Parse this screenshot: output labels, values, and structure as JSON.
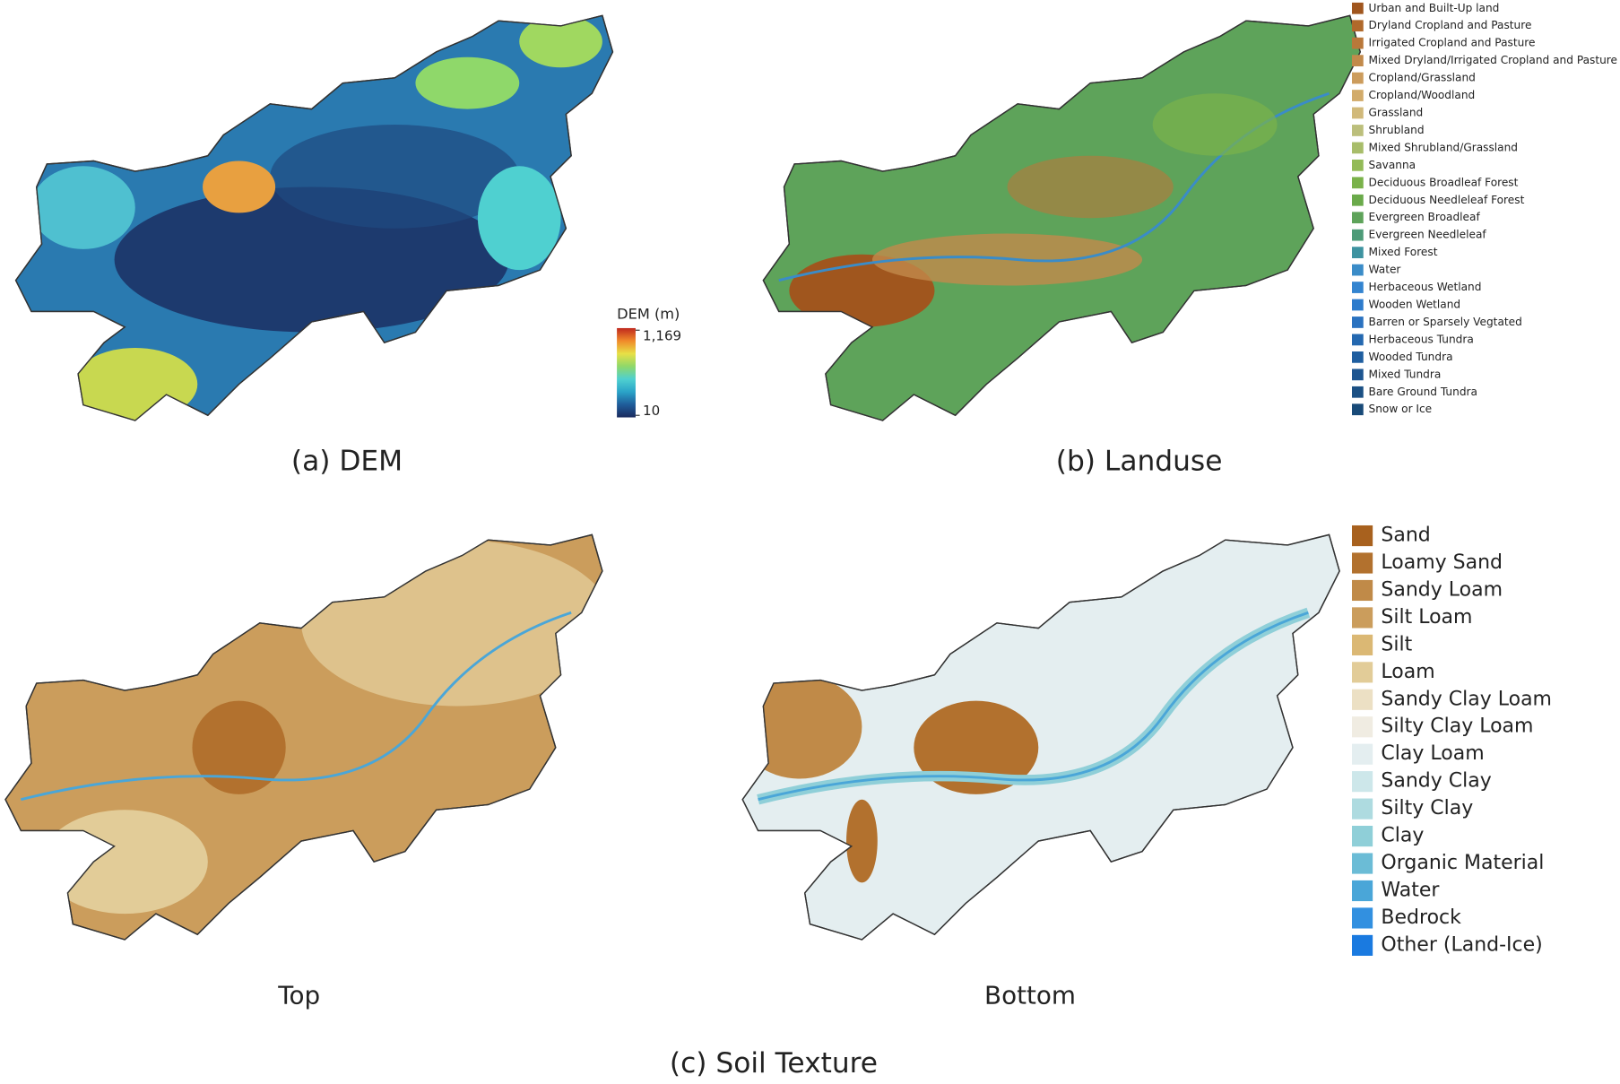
{
  "dem": {
    "caption": "(a) DEM",
    "legend_title": "DEM (m)",
    "max": {
      "value": 1169,
      "label": "1,169"
    },
    "min": 10,
    "colors": [
      "#1a2a5e",
      "#1f5c9a",
      "#2aa3c8",
      "#4fd0d0",
      "#8fd86a",
      "#e8e046",
      "#f08a2a",
      "#c0281e"
    ]
  },
  "landuse": {
    "caption": "(b) Landuse",
    "legend": [
      {
        "name": "Urban and Built-Up land",
        "color": "#a0561e"
      },
      {
        "name": "Dryland Cropland and Pasture",
        "color": "#b0692b"
      },
      {
        "name": "Irrigated Cropland and Pasture",
        "color": "#b9783a"
      },
      {
        "name": "Mixed Dryland/Irrigated Cropland and Pasture",
        "color": "#c28a4b"
      },
      {
        "name": "Cropland/Grassland",
        "color": "#cc9c5c"
      },
      {
        "name": "Cropland/Woodland",
        "color": "#d2ab6a"
      },
      {
        "name": "Grassland",
        "color": "#d1b97a"
      },
      {
        "name": "Shrubland",
        "color": "#bcbf7c"
      },
      {
        "name": "Mixed Shrubland/Grassland",
        "color": "#a8bd6a"
      },
      {
        "name": "Savanna",
        "color": "#93bb58"
      },
      {
        "name": "Deciduous Broadleaf Forest",
        "color": "#7ab24a"
      },
      {
        "name": "Deciduous Needleleaf Forest",
        "color": "#6aaa4a"
      },
      {
        "name": "Evergreen Broadleaf",
        "color": "#5ea35a"
      },
      {
        "name": "Evergreen Needleleaf",
        "color": "#4d9b78"
      },
      {
        "name": "Mixed Forest",
        "color": "#3e93a0"
      },
      {
        "name": "Water",
        "color": "#3a8cc8"
      },
      {
        "name": "Herbaceous Wetland",
        "color": "#3384d0"
      },
      {
        "name": "Wooden Wetland",
        "color": "#2d7bcc"
      },
      {
        "name": "Barren or Sparsely Vegtated",
        "color": "#2a72c0"
      },
      {
        "name": "Herbaceous Tundra",
        "color": "#2468b0"
      },
      {
        "name": "Wooded Tundra",
        "color": "#1f5ea0"
      },
      {
        "name": "Mixed Tundra",
        "color": "#1d5590"
      },
      {
        "name": "Bare Ground Tundra",
        "color": "#1b5084"
      },
      {
        "name": "Snow or Ice",
        "color": "#184a78"
      }
    ]
  },
  "soil": {
    "caption": "(c) Soil Texture",
    "top_label": "Top",
    "bottom_label": "Bottom",
    "legend": [
      {
        "name": "Sand",
        "color": "#a8611e"
      },
      {
        "name": "Loamy Sand",
        "color": "#b2712e"
      },
      {
        "name": "Sandy Loam",
        "color": "#c08a48"
      },
      {
        "name": "Silt Loam",
        "color": "#cb9d5c"
      },
      {
        "name": "Silt",
        "color": "#dbb874"
      },
      {
        "name": "Loam",
        "color": "#e2cc98"
      },
      {
        "name": "Sandy Clay Loam",
        "color": "#ece0c4"
      },
      {
        "name": "Silty Clay Loam",
        "color": "#f0ece2"
      },
      {
        "name": "Clay Loam",
        "color": "#e4eef0"
      },
      {
        "name": "Sandy Clay",
        "color": "#cde7ea"
      },
      {
        "name": "Silty Clay",
        "color": "#aedbe0"
      },
      {
        "name": "Clay",
        "color": "#8fcfd8"
      },
      {
        "name": "Organic Material",
        "color": "#6bbcd6"
      },
      {
        "name": "Water",
        "color": "#4aa6d8"
      },
      {
        "name": "Bedrock",
        "color": "#3290e0"
      },
      {
        "name": "Other (Land-Ice)",
        "color": "#1a7ae0"
      }
    ]
  }
}
